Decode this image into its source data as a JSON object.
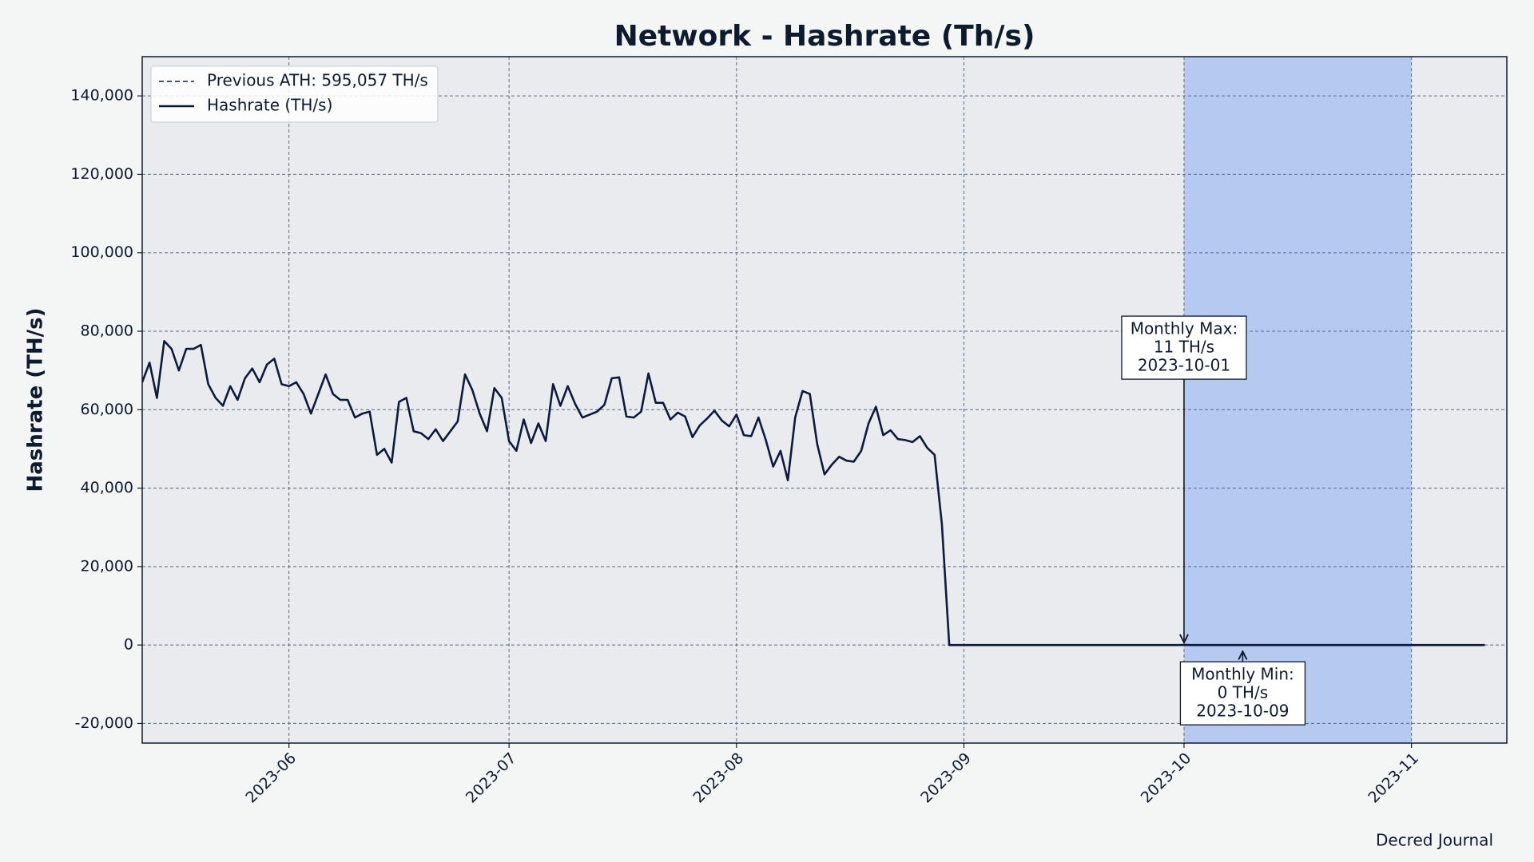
{
  "chart_data": {
    "type": "line",
    "title": "Network - Hashrate (Th/s)",
    "ylabel": "Hashrate (TH/s)",
    "credit": "Decred Journal",
    "grid": true,
    "legend": "upper left",
    "xlim": [
      "2023-05-12",
      "2023-11-14"
    ],
    "ylim": [
      -25000,
      150000
    ],
    "xticks": [
      {
        "value": "2023-06-01",
        "label": "2023-06"
      },
      {
        "value": "2023-07-01",
        "label": "2023-07"
      },
      {
        "value": "2023-08-01",
        "label": "2023-08"
      },
      {
        "value": "2023-09-01",
        "label": "2023-09"
      },
      {
        "value": "2023-10-01",
        "label": "2023-10"
      },
      {
        "value": "2023-11-01",
        "label": "2023-11"
      }
    ],
    "yticks": [
      {
        "value": -20000,
        "label": "-20,000"
      },
      0,
      {
        "value": 20000,
        "label": "20,000"
      },
      {
        "value": 40000,
        "label": "40,000"
      },
      {
        "value": 60000,
        "label": "60,000"
      },
      {
        "value": 80000,
        "label": "80,000"
      },
      {
        "value": 100000,
        "label": "100,000"
      },
      {
        "value": 120000,
        "label": "120,000"
      },
      {
        "value": 140000,
        "label": "140,000"
      }
    ],
    "reference_lines": [
      {
        "name": "Previous ATH: 595,057 TH/s",
        "value": 595057,
        "color": "#0e1a3d",
        "style": "dashed"
      }
    ],
    "shaded_spans": [
      {
        "start": "2023-10-01",
        "end": "2023-11-01",
        "color": "#b5c9f1"
      }
    ],
    "annotations": [
      {
        "text": [
          "Monthly Max:",
          "11 TH/s",
          "2023-10-01"
        ],
        "x": "2023-10-01",
        "y": 11,
        "placement": "above"
      },
      {
        "text": [
          "Monthly Min:",
          "0 TH/s",
          "2023-10-09"
        ],
        "x": "2023-10-09",
        "y": 0,
        "placement": "below"
      }
    ],
    "x": [
      "2023-05-12",
      "2023-05-13",
      "2023-05-14",
      "2023-05-15",
      "2023-05-16",
      "2023-05-17",
      "2023-05-18",
      "2023-05-19",
      "2023-05-20",
      "2023-05-21",
      "2023-05-22",
      "2023-05-23",
      "2023-05-24",
      "2023-05-25",
      "2023-05-26",
      "2023-05-27",
      "2023-05-28",
      "2023-05-29",
      "2023-05-30",
      "2023-05-31",
      "2023-06-01",
      "2023-06-02",
      "2023-06-03",
      "2023-06-04",
      "2023-06-05",
      "2023-06-06",
      "2023-06-07",
      "2023-06-08",
      "2023-06-09",
      "2023-06-10",
      "2023-06-11",
      "2023-06-12",
      "2023-06-13",
      "2023-06-14",
      "2023-06-15",
      "2023-06-16",
      "2023-06-17",
      "2023-06-18",
      "2023-06-19",
      "2023-06-20",
      "2023-06-21",
      "2023-06-22",
      "2023-06-23",
      "2023-06-24",
      "2023-06-25",
      "2023-06-26",
      "2023-06-27",
      "2023-06-28",
      "2023-06-29",
      "2023-06-30",
      "2023-07-01",
      "2023-07-02",
      "2023-07-03",
      "2023-07-04",
      "2023-07-05",
      "2023-07-06",
      "2023-07-07",
      "2023-07-08",
      "2023-07-09",
      "2023-07-10",
      "2023-07-11",
      "2023-07-12",
      "2023-07-13",
      "2023-07-14",
      "2023-07-15",
      "2023-07-16",
      "2023-07-17",
      "2023-07-18",
      "2023-07-19",
      "2023-07-20",
      "2023-07-21",
      "2023-07-22",
      "2023-07-23",
      "2023-07-24",
      "2023-07-25",
      "2023-07-26",
      "2023-07-27",
      "2023-07-28",
      "2023-07-29",
      "2023-07-30",
      "2023-07-31",
      "2023-08-01",
      "2023-08-02",
      "2023-08-03",
      "2023-08-04",
      "2023-08-05",
      "2023-08-06",
      "2023-08-07",
      "2023-08-08",
      "2023-08-09",
      "2023-08-10",
      "2023-08-11",
      "2023-08-12",
      "2023-08-13",
      "2023-08-14",
      "2023-08-15",
      "2023-08-16",
      "2023-08-17",
      "2023-08-18",
      "2023-08-19",
      "2023-08-20",
      "2023-08-21",
      "2023-08-22",
      "2023-08-23",
      "2023-08-24",
      "2023-08-25",
      "2023-08-26",
      "2023-08-27",
      "2023-08-28",
      "2023-08-29",
      "2023-08-30",
      "2023-08-31",
      "2023-09-01",
      "2023-09-02",
      "2023-09-03",
      "2023-09-04",
      "2023-09-05",
      "2023-09-06",
      "2023-09-07",
      "2023-09-08",
      "2023-09-09",
      "2023-09-10",
      "2023-09-11",
      "2023-09-12",
      "2023-09-13",
      "2023-09-14",
      "2023-09-15",
      "2023-09-16",
      "2023-09-17",
      "2023-09-18",
      "2023-09-19",
      "2023-09-20",
      "2023-09-21",
      "2023-09-22",
      "2023-09-23",
      "2023-09-24",
      "2023-09-25",
      "2023-09-26",
      "2023-09-27",
      "2023-09-28",
      "2023-09-29",
      "2023-09-30",
      "2023-10-01",
      "2023-10-02",
      "2023-10-03",
      "2023-10-04",
      "2023-10-05",
      "2023-10-06",
      "2023-10-07",
      "2023-10-08",
      "2023-10-09",
      "2023-10-10",
      "2023-10-11",
      "2023-10-12",
      "2023-10-13",
      "2023-10-14",
      "2023-10-15",
      "2023-10-16",
      "2023-10-17",
      "2023-10-18",
      "2023-10-19",
      "2023-10-20",
      "2023-10-21",
      "2023-10-22",
      "2023-10-23",
      "2023-10-24",
      "2023-10-25",
      "2023-10-26",
      "2023-10-27",
      "2023-10-28",
      "2023-10-29",
      "2023-10-30",
      "2023-10-31",
      "2023-11-01",
      "2023-11-02",
      "2023-11-03",
      "2023-11-04",
      "2023-11-05",
      "2023-11-06",
      "2023-11-07",
      "2023-11-08",
      "2023-11-09",
      "2023-11-10",
      "2023-11-11"
    ],
    "series": [
      {
        "name": "Hashrate (TH/s)",
        "color": "#0e1a3d",
        "values": [
          67000,
          72000,
          63000,
          77500,
          75500,
          70000,
          75500,
          75500,
          76500,
          66500,
          63000,
          61000,
          66000,
          62500,
          68000,
          70500,
          67000,
          71500,
          73000,
          66500,
          66000,
          67000,
          64000,
          59000,
          64000,
          69000,
          64000,
          62500,
          62500,
          58000,
          59000,
          59500,
          48500,
          50000,
          46500,
          62000,
          63000,
          54500,
          54000,
          52500,
          55000,
          52000,
          54500,
          57000,
          69000,
          65000,
          59000,
          54500,
          65500,
          63000,
          52000,
          49500,
          57500,
          51500,
          56500,
          52000,
          66500,
          61000,
          66000,
          61500,
          58000,
          58750,
          59500,
          61250,
          68000,
          68250,
          58250,
          58000,
          59500,
          69250,
          61750,
          61750,
          57500,
          59250,
          58250,
          53000,
          56000,
          57750,
          59750,
          57250,
          55750,
          58750,
          53500,
          53250,
          58000,
          52250,
          45500,
          49500,
          42000,
          58000,
          64750,
          64000,
          51250,
          43500,
          46000,
          48000,
          47000,
          46750,
          49500,
          56500,
          60750,
          53500,
          54750,
          52500,
          52250,
          51750,
          53250,
          50250,
          48500,
          30750,
          0,
          0,
          0,
          0,
          0,
          0,
          0,
          0,
          0,
          0,
          0,
          0,
          0,
          0,
          0,
          0,
          0,
          0,
          0,
          0,
          0,
          0,
          0,
          0,
          0,
          0,
          0,
          0,
          0,
          0,
          0,
          0,
          11,
          0,
          0,
          0,
          0,
          0,
          0,
          0,
          0,
          0,
          0,
          0,
          0,
          0,
          0,
          0,
          0,
          0,
          0,
          0,
          0,
          0,
          0,
          0,
          0,
          0,
          0,
          0,
          0,
          0,
          0,
          0,
          0,
          0,
          0,
          0,
          0,
          0,
          0,
          0,
          0,
          0
        ]
      }
    ]
  }
}
